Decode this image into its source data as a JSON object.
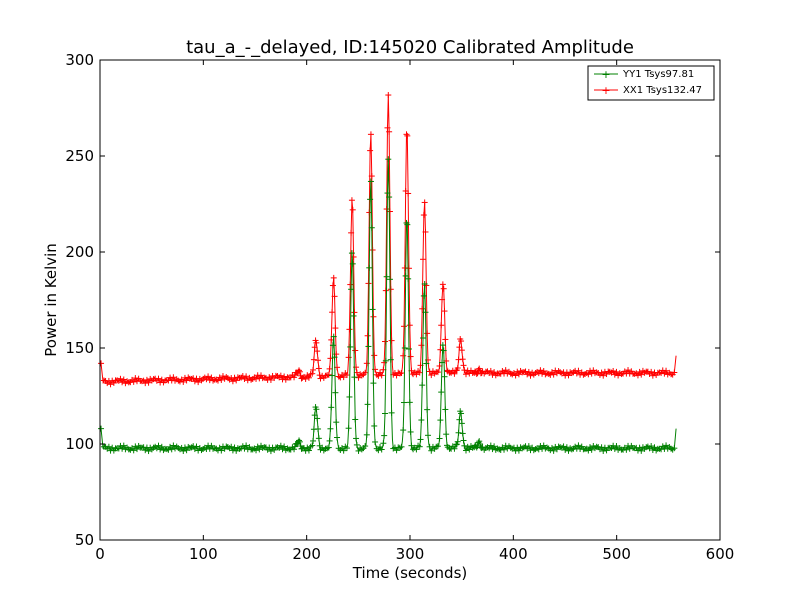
{
  "chart_data": {
    "type": "line",
    "title": "tau_a_-_delayed, ID:145020 Calibrated Amplitude",
    "xlabel": "Time (seconds)",
    "ylabel": "Power in Kelvin",
    "xlim": [
      0,
      600
    ],
    "ylim": [
      50,
      300
    ],
    "xticks": [
      0,
      100,
      200,
      300,
      400,
      500,
      600
    ],
    "yticks": [
      50,
      100,
      150,
      200,
      250,
      300
    ],
    "grid": false,
    "legend_position": "top-right",
    "marker": "+",
    "series": [
      {
        "name": "YY1 Tsys97.81",
        "color": "#008000",
        "baseline": 97.8,
        "start_value": 108,
        "end_value": 108,
        "x_range": [
          3,
          556
        ],
        "peaks": [
          {
            "x": 192,
            "y": 101
          },
          {
            "x": 209,
            "y": 119
          },
          {
            "x": 226,
            "y": 155
          },
          {
            "x": 244,
            "y": 200
          },
          {
            "x": 262,
            "y": 238
          },
          {
            "x": 279,
            "y": 248
          },
          {
            "x": 297,
            "y": 218
          },
          {
            "x": 314,
            "y": 184
          },
          {
            "x": 332,
            "y": 153
          },
          {
            "x": 349,
            "y": 117
          },
          {
            "x": 367,
            "y": 101
          }
        ]
      },
      {
        "name": "XX1 Tsys132.47",
        "color": "#ff0000",
        "baseline": 132.5,
        "baseline_end": 137.0,
        "start_value": 142,
        "end_value": 146,
        "x_range": [
          3,
          556
        ],
        "peaks": [
          {
            "x": 192,
            "y": 138
          },
          {
            "x": 209,
            "y": 154
          },
          {
            "x": 226,
            "y": 186
          },
          {
            "x": 244,
            "y": 228
          },
          {
            "x": 262,
            "y": 263
          },
          {
            "x": 279,
            "y": 282
          },
          {
            "x": 297,
            "y": 265
          },
          {
            "x": 314,
            "y": 227
          },
          {
            "x": 332,
            "y": 185
          },
          {
            "x": 349,
            "y": 155
          },
          {
            "x": 367,
            "y": 139
          }
        ]
      }
    ]
  }
}
